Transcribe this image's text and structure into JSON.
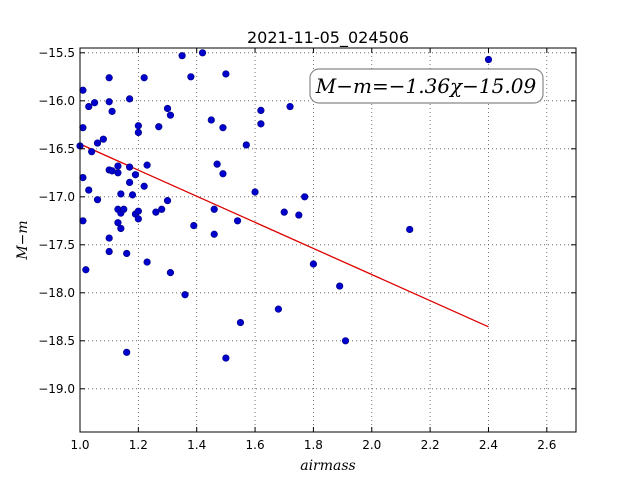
{
  "chart_data": {
    "type": "scatter",
    "title": "2021-11-05_024506",
    "xlabel": "airmass",
    "ylabel": "M−m",
    "xlim": [
      1.0,
      2.7
    ],
    "ylim": [
      -19.45,
      -15.45
    ],
    "y_inverted": true,
    "x_ticks": [
      1.0,
      1.2,
      1.4,
      1.6,
      1.8,
      2.0,
      2.2,
      2.4,
      2.6
    ],
    "x_tick_labels": [
      "1.0",
      "1.2",
      "1.4",
      "1.6",
      "1.8",
      "2.0",
      "2.2",
      "2.4",
      "2.6"
    ],
    "y_ticks": [
      -15.5,
      -16.0,
      -16.5,
      -17.0,
      -17.5,
      -18.0,
      -18.5,
      -19.0
    ],
    "y_tick_labels": [
      "−15.5",
      "−16.0",
      "−16.5",
      "−17.0",
      "−17.5",
      "−18.0",
      "−18.5",
      "−19.0"
    ],
    "grid": true,
    "annotation": "M−m=−1.36χ−15.09",
    "fit_line": {
      "slope": -1.36,
      "intercept": -15.09,
      "x_range": [
        1.0,
        2.4
      ],
      "color": "#dd0000"
    },
    "point_color": "#0000cc",
    "series": [
      {
        "points": [
          [
            1.0,
            -16.47
          ],
          [
            1.01,
            -15.89
          ],
          [
            1.01,
            -16.28
          ],
          [
            1.01,
            -16.8
          ],
          [
            1.01,
            -17.25
          ],
          [
            1.02,
            -17.76
          ],
          [
            1.03,
            -16.06
          ],
          [
            1.03,
            -16.93
          ],
          [
            1.04,
            -16.53
          ],
          [
            1.05,
            -16.02
          ],
          [
            1.06,
            -16.44
          ],
          [
            1.06,
            -17.03
          ],
          [
            1.08,
            -16.4
          ],
          [
            1.1,
            -15.76
          ],
          [
            1.1,
            -16.01
          ],
          [
            1.1,
            -16.72
          ],
          [
            1.1,
            -17.43
          ],
          [
            1.1,
            -17.57
          ],
          [
            1.11,
            -16.11
          ],
          [
            1.11,
            -16.73
          ],
          [
            1.13,
            -16.68
          ],
          [
            1.13,
            -16.75
          ],
          [
            1.13,
            -17.13
          ],
          [
            1.13,
            -17.27
          ],
          [
            1.14,
            -17.33
          ],
          [
            1.14,
            -17.17
          ],
          [
            1.14,
            -16.97
          ],
          [
            1.15,
            -17.13
          ],
          [
            1.16,
            -18.62
          ],
          [
            1.16,
            -17.59
          ],
          [
            1.17,
            -16.85
          ],
          [
            1.17,
            -15.98
          ],
          [
            1.17,
            -16.69
          ],
          [
            1.18,
            -16.98
          ],
          [
            1.19,
            -16.77
          ],
          [
            1.19,
            -17.18
          ],
          [
            1.2,
            -16.26
          ],
          [
            1.2,
            -16.33
          ],
          [
            1.2,
            -17.23
          ],
          [
            1.2,
            -17.15
          ],
          [
            1.22,
            -16.89
          ],
          [
            1.22,
            -15.76
          ],
          [
            1.23,
            -16.67
          ],
          [
            1.23,
            -17.68
          ],
          [
            1.26,
            -17.16
          ],
          [
            1.27,
            -16.27
          ],
          [
            1.28,
            -17.13
          ],
          [
            1.3,
            -16.08
          ],
          [
            1.3,
            -17.04
          ],
          [
            1.31,
            -16.15
          ],
          [
            1.31,
            -17.79
          ],
          [
            1.35,
            -15.53
          ],
          [
            1.36,
            -18.02
          ],
          [
            1.38,
            -15.75
          ],
          [
            1.39,
            -17.3
          ],
          [
            1.42,
            -15.5
          ],
          [
            1.45,
            -16.2
          ],
          [
            1.46,
            -17.13
          ],
          [
            1.46,
            -17.39
          ],
          [
            1.47,
            -16.66
          ],
          [
            1.49,
            -16.28
          ],
          [
            1.49,
            -16.76
          ],
          [
            1.5,
            -15.72
          ],
          [
            1.5,
            -18.68
          ],
          [
            1.54,
            -17.25
          ],
          [
            1.55,
            -18.31
          ],
          [
            1.57,
            -16.46
          ],
          [
            1.6,
            -16.95
          ],
          [
            1.62,
            -16.1
          ],
          [
            1.62,
            -16.24
          ],
          [
            1.68,
            -18.17
          ],
          [
            1.7,
            -17.16
          ],
          [
            1.72,
            -16.06
          ],
          [
            1.75,
            -17.19
          ],
          [
            1.77,
            -17.0
          ],
          [
            1.8,
            -17.7
          ],
          [
            1.89,
            -17.93
          ],
          [
            1.91,
            -18.5
          ],
          [
            2.13,
            -17.34
          ],
          [
            2.4,
            -15.57
          ]
        ]
      }
    ]
  }
}
